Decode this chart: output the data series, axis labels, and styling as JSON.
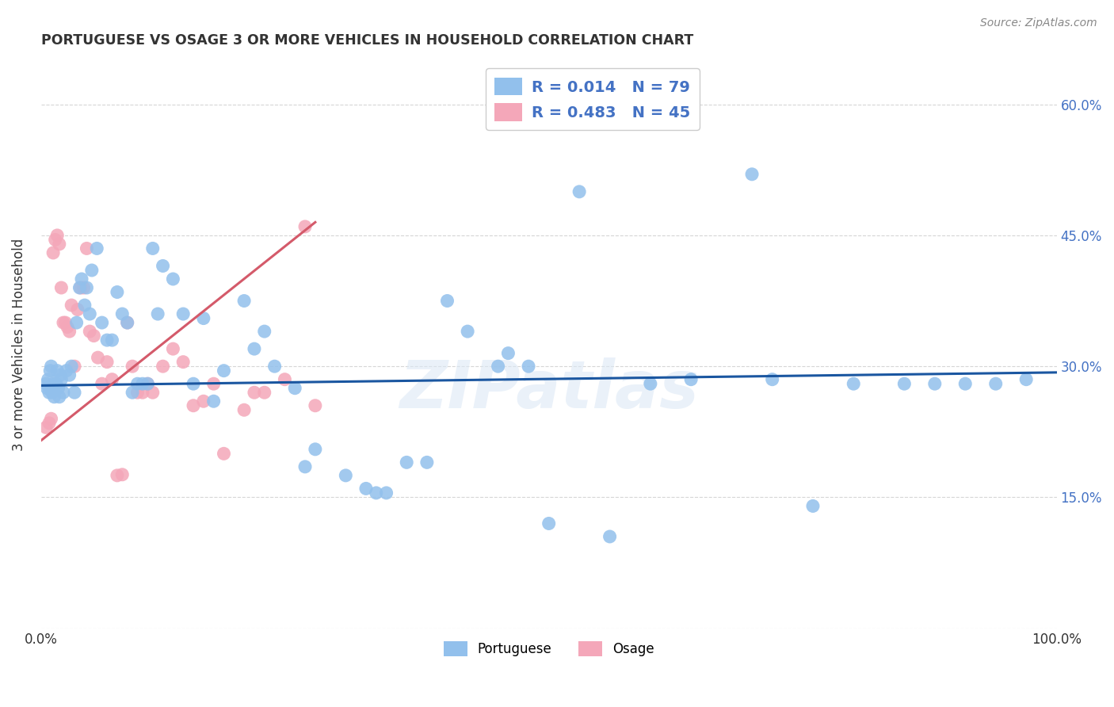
{
  "title": "PORTUGUESE VS OSAGE 3 OR MORE VEHICLES IN HOUSEHOLD CORRELATION CHART",
  "source": "Source: ZipAtlas.com",
  "ylabel": "3 or more Vehicles in Household",
  "watermark": "ZIPatlas",
  "xlim": [
    0.0,
    1.0
  ],
  "ylim": [
    0.0,
    0.65
  ],
  "xticks": [
    0.0,
    0.1,
    0.2,
    0.3,
    0.4,
    0.5,
    0.6,
    0.7,
    0.8,
    0.9,
    1.0
  ],
  "xtick_labels": [
    "0.0%",
    "",
    "",
    "",
    "",
    "",
    "",
    "",
    "",
    "",
    "100.0%"
  ],
  "yticks": [
    0.0,
    0.15,
    0.3,
    0.45,
    0.6
  ],
  "ytick_labels": [
    "",
    "15.0%",
    "30.0%",
    "45.0%",
    "60.0%"
  ],
  "portuguese_color": "#92C0EC",
  "osage_color": "#F4A7B9",
  "portuguese_line_color": "#1A56A0",
  "osage_line_color": "#D45A6A",
  "legend_text_color": "#4472C4",
  "portuguese_x": [
    0.005,
    0.006,
    0.007,
    0.008,
    0.009,
    0.01,
    0.011,
    0.012,
    0.013,
    0.015,
    0.016,
    0.017,
    0.018,
    0.019,
    0.02,
    0.022,
    0.025,
    0.028,
    0.03,
    0.033,
    0.035,
    0.038,
    0.04,
    0.043,
    0.045,
    0.048,
    0.05,
    0.055,
    0.06,
    0.065,
    0.07,
    0.075,
    0.08,
    0.085,
    0.09,
    0.095,
    0.1,
    0.105,
    0.11,
    0.115,
    0.12,
    0.13,
    0.14,
    0.15,
    0.16,
    0.17,
    0.18,
    0.2,
    0.21,
    0.22,
    0.23,
    0.25,
    0.26,
    0.27,
    0.3,
    0.32,
    0.33,
    0.34,
    0.36,
    0.38,
    0.4,
    0.42,
    0.45,
    0.46,
    0.48,
    0.5,
    0.53,
    0.56,
    0.6,
    0.64,
    0.7,
    0.72,
    0.76,
    0.8,
    0.85,
    0.88,
    0.91,
    0.94,
    0.97
  ],
  "portuguese_y": [
    0.28,
    0.275,
    0.285,
    0.27,
    0.295,
    0.3,
    0.27,
    0.28,
    0.265,
    0.28,
    0.295,
    0.275,
    0.265,
    0.29,
    0.285,
    0.27,
    0.295,
    0.29,
    0.3,
    0.27,
    0.35,
    0.39,
    0.4,
    0.37,
    0.39,
    0.36,
    0.41,
    0.435,
    0.35,
    0.33,
    0.33,
    0.385,
    0.36,
    0.35,
    0.27,
    0.28,
    0.28,
    0.28,
    0.435,
    0.36,
    0.415,
    0.4,
    0.36,
    0.28,
    0.355,
    0.26,
    0.295,
    0.375,
    0.32,
    0.34,
    0.3,
    0.275,
    0.185,
    0.205,
    0.175,
    0.16,
    0.155,
    0.155,
    0.19,
    0.19,
    0.375,
    0.34,
    0.3,
    0.315,
    0.3,
    0.12,
    0.5,
    0.105,
    0.28,
    0.285,
    0.52,
    0.285,
    0.14,
    0.28,
    0.28,
    0.28,
    0.28,
    0.28,
    0.285
  ],
  "osage_x": [
    0.005,
    0.008,
    0.01,
    0.012,
    0.014,
    0.016,
    0.018,
    0.02,
    0.022,
    0.024,
    0.026,
    0.028,
    0.03,
    0.033,
    0.036,
    0.039,
    0.042,
    0.045,
    0.048,
    0.052,
    0.056,
    0.06,
    0.065,
    0.07,
    0.075,
    0.08,
    0.085,
    0.09,
    0.095,
    0.1,
    0.105,
    0.11,
    0.12,
    0.13,
    0.14,
    0.15,
    0.16,
    0.17,
    0.18,
    0.2,
    0.21,
    0.22,
    0.24,
    0.26,
    0.27
  ],
  "osage_y": [
    0.23,
    0.235,
    0.24,
    0.43,
    0.445,
    0.45,
    0.44,
    0.39,
    0.35,
    0.35,
    0.345,
    0.34,
    0.37,
    0.3,
    0.365,
    0.39,
    0.39,
    0.435,
    0.34,
    0.335,
    0.31,
    0.28,
    0.305,
    0.285,
    0.175,
    0.176,
    0.35,
    0.3,
    0.27,
    0.27,
    0.28,
    0.27,
    0.3,
    0.32,
    0.305,
    0.255,
    0.26,
    0.28,
    0.2,
    0.25,
    0.27,
    0.27,
    0.285,
    0.46,
    0.255
  ],
  "portuguese_trend_x": [
    0.0,
    1.0
  ],
  "portuguese_trend_y": [
    0.278,
    0.293
  ],
  "osage_trend_x": [
    0.0,
    0.27
  ],
  "osage_trend_y": [
    0.215,
    0.465
  ]
}
